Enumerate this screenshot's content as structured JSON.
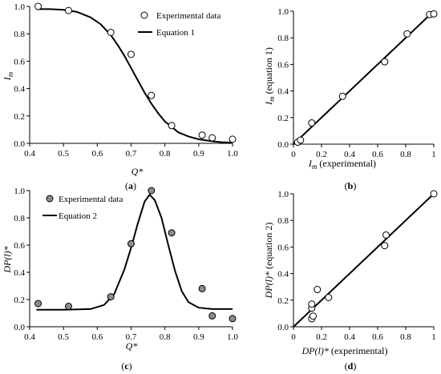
{
  "chart_data": [
    {
      "panel": "(a)",
      "type": "scatter",
      "xlabel": "Q*",
      "ylabel": "I_m",
      "xlim": [
        0.4,
        1.0
      ],
      "ylim": [
        0.0,
        1.0
      ],
      "xticks": [
        "0.4",
        "0.5",
        "0.6",
        "0.7",
        "0.8",
        "0.9",
        "1.0"
      ],
      "yticks": [
        "0.0",
        "0.2",
        "0.4",
        "0.6",
        "0.8",
        "1.0"
      ],
      "legend_position": "top-right",
      "series": [
        {
          "name": "Experimental data",
          "kind": "points",
          "marker": "open-circle",
          "x": [
            0.425,
            0.515,
            0.64,
            0.7,
            0.76,
            0.82,
            0.91,
            0.94,
            1.0
          ],
          "y": [
            1.0,
            0.97,
            0.81,
            0.65,
            0.35,
            0.13,
            0.06,
            0.04,
            0.03
          ]
        },
        {
          "name": "Equation 1",
          "kind": "line",
          "x": [
            0.42,
            0.46,
            0.5,
            0.54,
            0.58,
            0.61,
            0.64,
            0.66,
            0.68,
            0.7,
            0.72,
            0.74,
            0.76,
            0.78,
            0.8,
            0.82,
            0.84,
            0.87,
            0.9,
            0.94,
            0.97,
            1.0
          ],
          "y": [
            0.98,
            0.98,
            0.975,
            0.96,
            0.92,
            0.87,
            0.79,
            0.72,
            0.64,
            0.55,
            0.46,
            0.37,
            0.29,
            0.22,
            0.16,
            0.12,
            0.08,
            0.05,
            0.03,
            0.015,
            0.008,
            0.005
          ]
        }
      ]
    },
    {
      "panel": "(b)",
      "type": "scatter",
      "xlabel": "I_m (experimental)",
      "ylabel": "I_m (equation 1)",
      "xlim": [
        0.0,
        1.0
      ],
      "ylim": [
        0.0,
        1.0
      ],
      "xticks": [
        "0",
        "0.2",
        "0.4",
        "0.6",
        "0.8",
        "1"
      ],
      "yticks": [
        "0.0",
        "0.2",
        "0.4",
        "0.6",
        "0.8",
        "1.0"
      ],
      "series": [
        {
          "kind": "points",
          "marker": "open-circle",
          "x": [
            0.03,
            0.05,
            0.13,
            0.35,
            0.65,
            0.81,
            0.97,
            1.0
          ],
          "y": [
            0.015,
            0.03,
            0.16,
            0.36,
            0.62,
            0.83,
            0.975,
            0.98
          ]
        },
        {
          "kind": "line",
          "x": [
            0.0,
            1.0
          ],
          "y": [
            0.0,
            1.0
          ]
        }
      ]
    },
    {
      "panel": "(c)",
      "type": "scatter",
      "xlabel": "Q*",
      "ylabel": "DP(l)*",
      "xlim": [
        0.4,
        1.0
      ],
      "ylim": [
        0.0,
        1.0
      ],
      "xticks": [
        "0.4",
        "0.5",
        "0.6",
        "0.7",
        "0.8",
        "0.9",
        "1.0"
      ],
      "yticks": [
        "0.0",
        "0.2",
        "0.4",
        "0.6",
        "0.8",
        "1.0"
      ],
      "legend_position": "top-left",
      "series": [
        {
          "name": "Experimental data",
          "kind": "points",
          "marker": "filled-gray-circle",
          "x": [
            0.425,
            0.515,
            0.64,
            0.7,
            0.76,
            0.82,
            0.91,
            0.94,
            1.0
          ],
          "y": [
            0.17,
            0.15,
            0.22,
            0.61,
            1.0,
            0.69,
            0.28,
            0.08,
            0.06
          ]
        },
        {
          "name": "Equation 2",
          "kind": "line",
          "x": [
            0.42,
            0.5,
            0.58,
            0.62,
            0.65,
            0.68,
            0.7,
            0.72,
            0.74,
            0.755,
            0.77,
            0.79,
            0.81,
            0.83,
            0.85,
            0.87,
            0.9,
            0.94,
            1.0
          ],
          "y": [
            0.125,
            0.125,
            0.13,
            0.16,
            0.24,
            0.42,
            0.58,
            0.76,
            0.92,
            0.97,
            0.93,
            0.8,
            0.6,
            0.41,
            0.26,
            0.18,
            0.14,
            0.13,
            0.13
          ]
        }
      ]
    },
    {
      "panel": "(d)",
      "type": "scatter",
      "xlabel": "DP(l)* (experimental)",
      "ylabel": "DP(l)* (equation 2)",
      "xlim": [
        0.0,
        1.0
      ],
      "ylim": [
        0.0,
        1.0
      ],
      "xticks": [
        "0",
        "0.2",
        "0.4",
        "0.6",
        "0.8",
        "1"
      ],
      "yticks": [
        "0.0",
        "0.2",
        "0.4",
        "0.6",
        "0.8",
        "1.0"
      ],
      "series": [
        {
          "kind": "points",
          "marker": "open-circle",
          "x": [
            0.13,
            0.14,
            0.13,
            0.13,
            0.17,
            0.25,
            0.65,
            0.66,
            1.0
          ],
          "y": [
            0.06,
            0.08,
            0.14,
            0.17,
            0.28,
            0.22,
            0.61,
            0.69,
            1.0
          ]
        },
        {
          "kind": "line",
          "x": [
            0.0,
            1.0
          ],
          "y": [
            0.0,
            1.0
          ]
        }
      ]
    }
  ],
  "panels_text": {
    "a": {
      "caption_open": "(",
      "caption_letter": "a",
      "caption_close": ")",
      "xlabel": "Q*",
      "ylabel_main": "I",
      "ylabel_sub": "m",
      "legend": [
        "Experimental data",
        "Equation 1"
      ]
    },
    "b": {
      "caption_open": "(",
      "caption_letter": "b",
      "caption_close": ")",
      "xlabel_main": "I",
      "xlabel_sub": "m",
      "xlabel_rest": " (experimental)",
      "ylabel_main": "I",
      "ylabel_sub": "m",
      "ylabel_rest": " (equation 1)"
    },
    "c": {
      "caption_open": "(",
      "caption_letter": "c",
      "caption_close": ")",
      "xlabel": "Q*",
      "ylabel": "DP(l)*",
      "legend": [
        "Experimental data",
        "Equation 2"
      ]
    },
    "d": {
      "caption_open": "(",
      "caption_letter": "d",
      "caption_close": ")",
      "xlabel_main": "DP(l)*",
      "xlabel_rest": " (experimental)",
      "ylabel_main": "DP(l)*",
      "ylabel_rest": " (equation 2)"
    }
  },
  "colors": {
    "axis": "#000000",
    "line": "#000000",
    "open_marker_fill": "#ffffff",
    "gray_marker_fill": "#8c8c8c"
  }
}
